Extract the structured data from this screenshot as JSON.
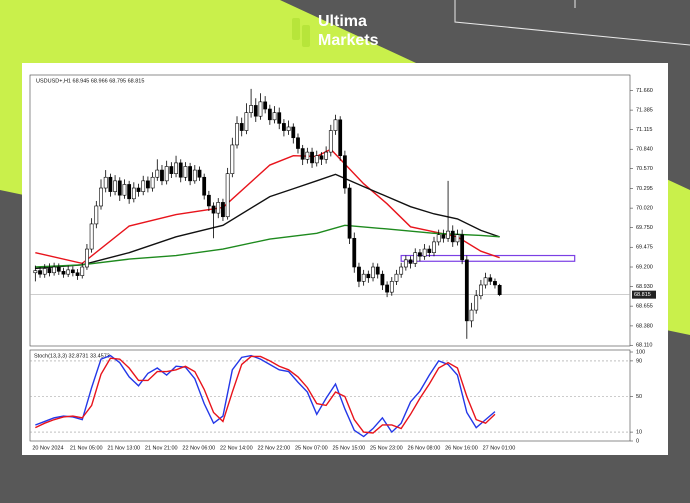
{
  "brand": {
    "line1": "Ultima",
    "line2": "Markets"
  },
  "chart_data": [
    {
      "type": "candlestick",
      "title": "USDUSD+,H1  68.945 68.966 68.795 68.815",
      "categories": [
        "20 Nov 2024",
        null,
        null,
        null,
        null,
        null,
        null,
        null,
        "21 Nov 05:00",
        null,
        null,
        null,
        null,
        null,
        null,
        null,
        "21 Nov 13:00",
        null,
        null,
        null,
        null,
        null,
        null,
        null,
        "21 Nov 21:00",
        null,
        null,
        null,
        null,
        null,
        null,
        null,
        "22 Nov 06:00",
        null,
        null,
        null,
        null,
        null,
        null,
        null,
        "22 Nov 14:00",
        null,
        null,
        null,
        null,
        null,
        null,
        null,
        "22 Nov 22:00",
        null,
        null,
        null,
        null,
        null,
        null,
        null,
        "25 Nov 07:00",
        null,
        null,
        null,
        null,
        null,
        null,
        null,
        "25 Nov 15:00",
        null,
        null,
        null,
        null,
        null,
        null,
        null,
        "25 Nov 23:00",
        null,
        null,
        null,
        null,
        null,
        null,
        null,
        "26 Nov 08:00",
        null,
        null,
        null,
        null,
        null,
        null,
        null,
        "26 Nov 16:00",
        null,
        null,
        null,
        null,
        null,
        null,
        null,
        "27 Nov 01:00",
        null,
        null,
        null
      ],
      "open": [
        69.12,
        69.15,
        69.1,
        69.18,
        69.12,
        69.2,
        69.14,
        69.1,
        69.16,
        69.12,
        69.08,
        69.2,
        69.45,
        69.8,
        70.05,
        70.3,
        70.45,
        70.25,
        70.4,
        70.2,
        70.35,
        70.15,
        70.3,
        70.25,
        70.4,
        70.3,
        70.45,
        70.55,
        70.4,
        70.6,
        70.5,
        70.65,
        70.45,
        70.6,
        70.4,
        70.55,
        70.45,
        70.2,
        70.05,
        69.95,
        70.1,
        69.9,
        70.5,
        70.9,
        71.2,
        71.1,
        71.35,
        71.45,
        71.3,
        71.5,
        71.4,
        71.25,
        71.35,
        71.2,
        71.1,
        71.15,
        71.0,
        70.85,
        70.7,
        70.8,
        70.65,
        70.75,
        70.7,
        70.8,
        71.1,
        71.25,
        70.75,
        70.3,
        69.6,
        69.2,
        69.0,
        69.1,
        69.05,
        69.2,
        69.1,
        68.95,
        68.85,
        69.0,
        69.1,
        69.2,
        69.3,
        69.25,
        69.4,
        69.35,
        69.45,
        69.4,
        69.55,
        69.65,
        69.6,
        69.7,
        69.55,
        69.65,
        69.3,
        68.45,
        68.6,
        68.8,
        68.95,
        69.05,
        69.0,
        68.945
      ],
      "high": [
        69.22,
        69.2,
        69.24,
        69.25,
        69.26,
        69.25,
        69.19,
        69.22,
        69.21,
        69.17,
        69.26,
        69.52,
        69.88,
        70.12,
        70.42,
        70.55,
        70.5,
        70.48,
        70.45,
        70.42,
        70.4,
        70.38,
        70.36,
        70.47,
        70.46,
        70.52,
        70.7,
        70.62,
        70.68,
        70.66,
        70.75,
        70.7,
        70.66,
        70.65,
        70.62,
        70.6,
        70.5,
        70.26,
        70.1,
        70.16,
        70.15,
        70.58,
        71.0,
        71.3,
        71.28,
        71.48,
        71.68,
        71.55,
        71.62,
        71.58,
        71.46,
        71.44,
        71.42,
        71.26,
        71.24,
        71.2,
        71.06,
        70.9,
        70.86,
        70.86,
        70.82,
        70.8,
        70.88,
        71.18,
        71.32,
        71.3,
        70.82,
        70.36,
        69.68,
        69.26,
        69.16,
        69.15,
        69.26,
        69.25,
        69.15,
        69.0,
        69.06,
        69.16,
        69.26,
        69.36,
        69.35,
        69.46,
        69.45,
        69.52,
        69.5,
        69.62,
        69.72,
        69.72,
        70.4,
        69.78,
        69.72,
        69.72,
        69.36,
        68.7,
        68.88,
        69.02,
        69.12,
        69.1,
        69.04,
        68.966
      ],
      "low": [
        69.0,
        69.05,
        69.05,
        69.07,
        69.08,
        69.09,
        69.05,
        69.06,
        69.07,
        69.02,
        69.04,
        69.16,
        69.4,
        69.74,
        70.0,
        70.24,
        70.18,
        70.2,
        70.12,
        70.15,
        70.08,
        70.1,
        70.18,
        70.2,
        70.24,
        70.25,
        70.4,
        70.34,
        70.35,
        70.44,
        70.45,
        70.38,
        70.4,
        70.34,
        70.36,
        70.4,
        70.14,
        69.98,
        69.6,
        69.88,
        69.84,
        69.86,
        70.45,
        70.85,
        71.02,
        71.05,
        71.28,
        71.22,
        71.25,
        71.34,
        71.18,
        71.2,
        71.12,
        71.02,
        71.04,
        70.92,
        70.78,
        70.62,
        70.64,
        70.58,
        70.6,
        70.62,
        70.64,
        70.74,
        71.04,
        70.68,
        70.22,
        69.52,
        69.12,
        68.92,
        68.94,
        68.98,
        69.0,
        69.04,
        68.88,
        68.78,
        68.8,
        68.95,
        69.05,
        69.15,
        69.18,
        69.2,
        69.28,
        69.3,
        69.34,
        69.35,
        69.5,
        69.54,
        69.55,
        69.48,
        69.5,
        69.24,
        68.2,
        68.36,
        68.55,
        68.75,
        68.9,
        68.95,
        68.9,
        68.795
      ],
      "close": [
        69.15,
        69.1,
        69.18,
        69.12,
        69.2,
        69.14,
        69.1,
        69.16,
        69.12,
        69.08,
        69.2,
        69.45,
        69.8,
        70.05,
        70.3,
        70.45,
        70.25,
        70.4,
        70.2,
        70.35,
        70.15,
        70.3,
        70.25,
        70.4,
        70.3,
        70.45,
        70.55,
        70.4,
        70.6,
        70.5,
        70.65,
        70.45,
        70.6,
        70.4,
        70.55,
        70.45,
        70.2,
        70.05,
        69.95,
        70.1,
        69.9,
        70.5,
        70.9,
        71.2,
        71.1,
        71.35,
        71.45,
        71.3,
        71.5,
        71.4,
        71.25,
        71.35,
        71.2,
        71.1,
        71.15,
        71.0,
        70.85,
        70.7,
        70.8,
        70.65,
        70.75,
        70.7,
        70.8,
        71.1,
        71.25,
        70.75,
        70.3,
        69.6,
        69.2,
        69.0,
        69.1,
        69.05,
        69.2,
        69.1,
        68.95,
        68.85,
        69.0,
        69.1,
        69.2,
        69.3,
        69.25,
        69.4,
        69.35,
        69.45,
        69.4,
        69.55,
        69.65,
        69.6,
        69.7,
        69.55,
        69.65,
        69.3,
        68.45,
        68.6,
        68.8,
        68.95,
        69.05,
        69.0,
        68.95,
        68.815
      ],
      "up_color": "#ffffff",
      "down_color": "#000000",
      "series": [
        {
          "color": "#e8141c",
          "x": [
            0,
            10,
            20,
            30,
            40,
            50,
            55,
            60,
            63,
            70,
            75,
            80,
            85,
            90,
            95,
            99
          ],
          "values": [
            69.4,
            69.25,
            69.77,
            69.93,
            70.03,
            70.62,
            70.75,
            70.74,
            70.84,
            70.36,
            70.08,
            69.76,
            69.69,
            69.62,
            69.42,
            69.33
          ]
        },
        {
          "color": "#111111",
          "x": [
            0,
            10,
            20,
            30,
            40,
            50,
            55,
            60,
            64,
            70,
            75,
            80,
            85,
            90,
            95,
            99
          ],
          "values": [
            69.18,
            69.23,
            69.4,
            69.62,
            69.78,
            70.18,
            70.29,
            70.4,
            70.49,
            70.32,
            70.18,
            70.04,
            69.94,
            69.87,
            69.71,
            69.62
          ]
        },
        {
          "color": "#1e8a1e",
          "x": [
            0,
            10,
            20,
            30,
            40,
            50,
            60,
            66,
            75,
            85,
            95,
            99
          ],
          "values": [
            69.2,
            69.23,
            69.31,
            69.36,
            69.45,
            69.59,
            69.67,
            69.78,
            69.73,
            69.67,
            69.64,
            69.62
          ]
        }
      ],
      "zone": {
        "low": 69.28,
        "high": 69.36,
        "start": 78,
        "end": 115,
        "color": "#7b3fe4"
      },
      "last_price": 68.815,
      "ylim": [
        68.1,
        71.86
      ],
      "yticks": [
        {
          "value": 71.66,
          "label": "71.660"
        },
        {
          "value": 71.385,
          "label": "71.385"
        },
        {
          "value": 71.115,
          "label": "71.115"
        },
        {
          "value": 70.84,
          "label": "70.840"
        },
        {
          "value": 70.57,
          "label": "70.570"
        },
        {
          "value": 70.295,
          "label": "70.295"
        },
        {
          "value": 70.02,
          "label": "70.020"
        },
        {
          "value": 69.75,
          "label": "69.750"
        },
        {
          "value": 69.475,
          "label": "69.475"
        },
        {
          "value": 69.2,
          "label": "69.200"
        },
        {
          "value": 68.93,
          "label": "68.930"
        },
        {
          "value": 68.655,
          "label": "68.655"
        },
        {
          "value": 68.38,
          "label": "68.380"
        },
        {
          "value": 68.11,
          "label": "68.110"
        }
      ]
    },
    {
      "type": "line",
      "title": "Stoch(13,3,3) 32.8731 33.4573",
      "series": [
        {
          "color": "#2438e8",
          "x": [
            0,
            2,
            4,
            6,
            8,
            10,
            12,
            14,
            16,
            18,
            20,
            22,
            24,
            26,
            28,
            30,
            32,
            34,
            36,
            38,
            40,
            42,
            44,
            46,
            48,
            50,
            52,
            54,
            56,
            58,
            60,
            62,
            64,
            66,
            68,
            70,
            72,
            74,
            76,
            78,
            80,
            82,
            84,
            86,
            88,
            90,
            92,
            94,
            96,
            98
          ],
          "values": [
            18,
            22,
            26,
            28,
            27,
            24,
            60,
            92,
            96,
            88,
            72,
            62,
            76,
            82,
            74,
            84,
            83,
            70,
            42,
            20,
            28,
            80,
            94,
            96,
            92,
            86,
            80,
            78,
            66,
            55,
            30,
            48,
            64,
            36,
            12,
            5,
            14,
            26,
            10,
            20,
            44,
            56,
            74,
            90,
            86,
            74,
            32,
            15,
            24,
            33
          ]
        },
        {
          "color": "#e8141c",
          "x": [
            0,
            2,
            4,
            6,
            8,
            10,
            12,
            14,
            16,
            18,
            20,
            22,
            24,
            26,
            28,
            30,
            32,
            34,
            36,
            38,
            40,
            42,
            44,
            46,
            48,
            50,
            52,
            54,
            56,
            58,
            60,
            62,
            64,
            66,
            68,
            70,
            72,
            74,
            76,
            78,
            80,
            82,
            84,
            86,
            88,
            90,
            92,
            94,
            96,
            98
          ],
          "values": [
            15,
            20,
            24,
            27,
            28,
            26,
            40,
            75,
            93,
            92,
            82,
            68,
            68,
            78,
            78,
            80,
            84,
            78,
            58,
            32,
            22,
            55,
            86,
            95,
            95,
            90,
            84,
            80,
            72,
            60,
            42,
            40,
            55,
            50,
            24,
            10,
            9,
            18,
            18,
            14,
            30,
            48,
            64,
            82,
            88,
            82,
            50,
            24,
            20,
            30
          ]
        }
      ],
      "ylim": [
        0,
        100
      ],
      "yticks": [
        0,
        10,
        50,
        90,
        100
      ]
    }
  ]
}
